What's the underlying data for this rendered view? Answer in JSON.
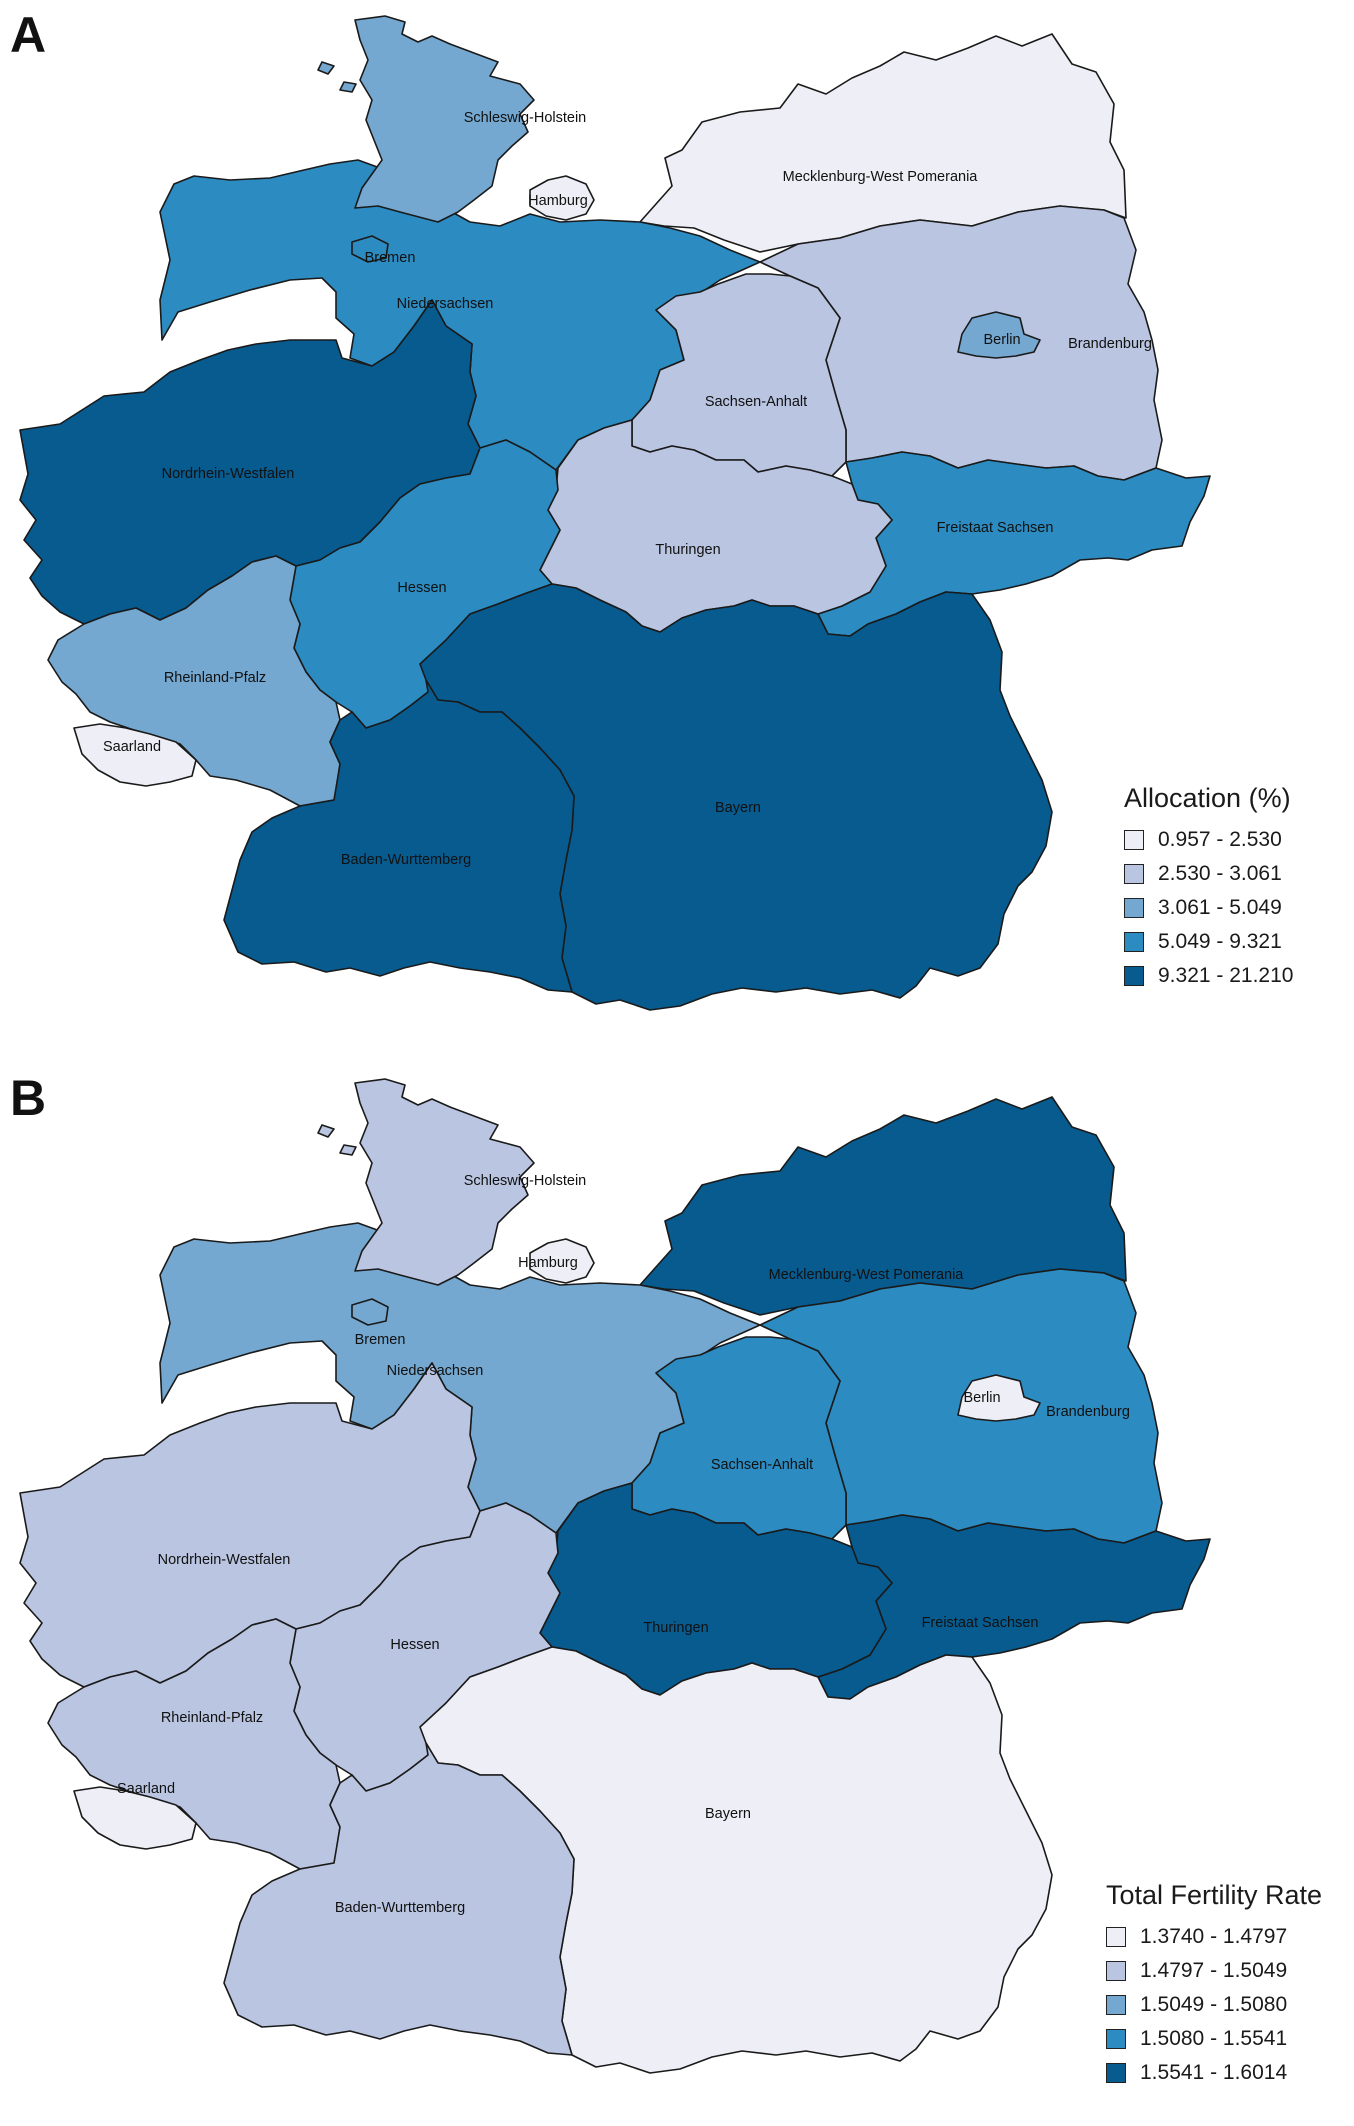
{
  "palette": [
    "#eeeef6",
    "#bac5e1",
    "#74a8d0",
    "#2c8bc0",
    "#075b8f"
  ],
  "panels": [
    {
      "letter": "A",
      "legend": {
        "title": "Allocation (%)",
        "items": [
          {
            "label": "0.957 - 2.530",
            "class": 0
          },
          {
            "label": "2.530 - 3.061",
            "class": 1
          },
          {
            "label": "3.061 - 5.049",
            "class": 2
          },
          {
            "label": "5.049 - 9.321",
            "class": 3
          },
          {
            "label": "9.321 - 21.210",
            "class": 4
          }
        ]
      },
      "states": {
        "schleswig_holstein": {
          "name": "Schleswig-Holstein",
          "class": 2
        },
        "hamburg": {
          "name": "Hamburg",
          "class": 0
        },
        "mecklenburg": {
          "name": "Mecklenburg-West Pomerania",
          "class": 0
        },
        "bremen": {
          "name": "Bremen",
          "class": 3
        },
        "niedersachsen": {
          "name": "Niedersachsen",
          "class": 3
        },
        "berlin": {
          "name": "Berlin",
          "class": 2
        },
        "brandenburg": {
          "name": "Brandenburg",
          "class": 1
        },
        "sachsen_anhalt": {
          "name": "Sachsen-Anhalt",
          "class": 1
        },
        "nrw": {
          "name": "Nordrhein-Westfalen",
          "class": 4
        },
        "sachsen": {
          "name": "Freistaat Sachsen",
          "class": 3
        },
        "thuringen": {
          "name": "Thuringen",
          "class": 1
        },
        "hessen": {
          "name": "Hessen",
          "class": 3
        },
        "rheinland_pfalz": {
          "name": "Rheinland-Pfalz",
          "class": 2
        },
        "saarland": {
          "name": "Saarland",
          "class": 0
        },
        "bayern": {
          "name": "Bayern",
          "class": 4
        },
        "bw": {
          "name": "Baden-Wurttemberg",
          "class": 4
        }
      }
    },
    {
      "letter": "B",
      "legend": {
        "title": "Total Fertility Rate",
        "items": [
          {
            "label": "1.3740 - 1.4797",
            "class": 0
          },
          {
            "label": "1.4797 - 1.5049",
            "class": 1
          },
          {
            "label": "1.5049 - 1.5080",
            "class": 2
          },
          {
            "label": "1.5080 - 1.5541",
            "class": 3
          },
          {
            "label": "1.5541 - 1.6014",
            "class": 4
          }
        ]
      },
      "states": {
        "schleswig_holstein": {
          "name": "Schleswig-Holstein",
          "class": 1
        },
        "hamburg": {
          "name": "Hamburg",
          "class": 0
        },
        "mecklenburg": {
          "name": "Mecklenburg-West Pomerania",
          "class": 4
        },
        "bremen": {
          "name": "Bremen",
          "class": 2
        },
        "niedersachsen": {
          "name": "Niedersachsen",
          "class": 2
        },
        "berlin": {
          "name": "Berlin",
          "class": 0
        },
        "brandenburg": {
          "name": "Brandenburg",
          "class": 3
        },
        "sachsen_anhalt": {
          "name": "Sachsen-Anhalt",
          "class": 3
        },
        "nrw": {
          "name": "Nordrhein-Westfalen",
          "class": 1
        },
        "sachsen": {
          "name": "Freistaat Sachsen",
          "class": 4
        },
        "thuringen": {
          "name": "Thuringen",
          "class": 4
        },
        "hessen": {
          "name": "Hessen",
          "class": 1
        },
        "rheinland_pfalz": {
          "name": "Rheinland-Pfalz",
          "class": 1
        },
        "saarland": {
          "name": "Saarland",
          "class": 0
        },
        "bayern": {
          "name": "Bayern",
          "class": 0
        },
        "bw": {
          "name": "Baden-Wurttemberg",
          "class": 1
        }
      }
    }
  ]
}
